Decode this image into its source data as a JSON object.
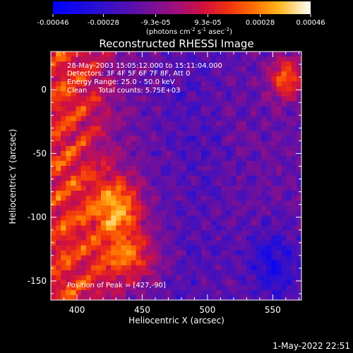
{
  "colorbar": {
    "ticks": [
      "-0.00046",
      "-0.00028",
      "-9.3e-05",
      "9.3e-05",
      "0.00028",
      "0.00046"
    ],
    "tick_values": [
      -0.00046,
      -0.00028,
      -9.3e-05,
      9.3e-05,
      0.00028,
      0.00046
    ],
    "range": [
      -0.00046,
      0.00046
    ],
    "units_pre": "(photons cm",
    "units_sup1": "-2",
    "units_mid": " s",
    "units_sup2": "-1",
    "units_mid2": " asec",
    "units_sup3": "-2",
    "units_post": ")"
  },
  "chart_data": {
    "type": "heatmap",
    "title": "Reconstructed RHESSI Image",
    "xlabel": "Heliocentric X (arcsec)",
    "ylabel": "Heliocentric Y (arcsec)",
    "xlim": [
      380,
      572
    ],
    "ylim": [
      -165,
      30
    ],
    "x_ticks": [
      400,
      450,
      500,
      550
    ],
    "y_ticks": [
      0,
      -50,
      -100,
      -150
    ],
    "x_tick_labels": [
      "400",
      "450",
      "500",
      "550"
    ],
    "y_tick_labels": [
      "0",
      "-50",
      "-100",
      "-150"
    ],
    "annotations": [
      "28-May-2003 15:05:12.000 to 15:11:04.000",
      "Detectors: 3F 4F 5F 6F 7F 8F, Att 0",
      "Energy Range: 25.0 - 50.0 keV",
      "Clean     Total counts: 5.75E+03"
    ],
    "peak_label": "Position of Peak = [427,-90]",
    "peak": [
      427,
      -90
    ]
  },
  "footer": {
    "timestamp": "1-May-2022 22:51"
  }
}
